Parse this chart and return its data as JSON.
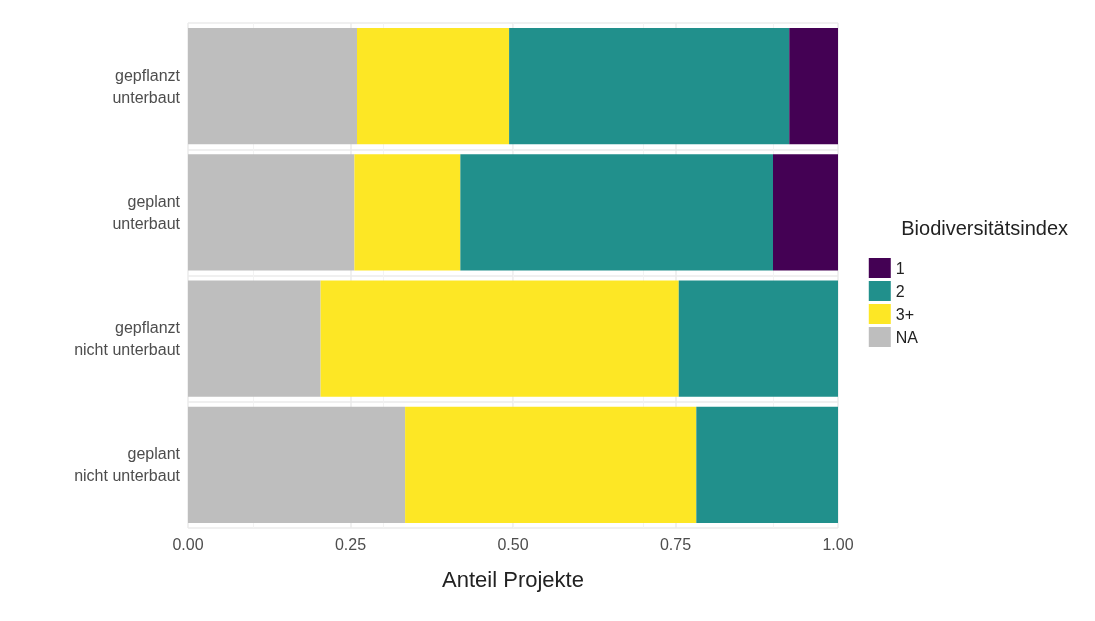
{
  "chart_data": {
    "type": "bar",
    "orientation": "horizontal",
    "stacked": true,
    "xlabel": "Anteil Projekte",
    "legend_title": "Biodiversitätsindex",
    "legend": "right",
    "grid": true,
    "categories": [
      "gepflanzt\nunterbaut",
      "geplant\nunterbaut",
      "gepflanzt\nnicht unterbaut",
      "geplant\nnicht unterbaut"
    ],
    "xlim": [
      0,
      1
    ],
    "xticks": [
      {
        "value": 0,
        "label": "0.00"
      },
      {
        "value": 0.25,
        "label": "0.25"
      },
      {
        "value": 0.5,
        "label": "0.50"
      },
      {
        "value": 0.75,
        "label": "0.75"
      },
      {
        "value": 1,
        "label": "1.00"
      }
    ],
    "series": [
      {
        "name": "NA",
        "color": "#bebebe",
        "values": [
          0.26,
          0.256,
          0.204,
          0.334
        ]
      },
      {
        "name": "3+",
        "color": "#fde725",
        "values": [
          0.234,
          0.163,
          0.551,
          0.448
        ]
      },
      {
        "name": "2",
        "color": "#21908c",
        "values": [
          0.431,
          0.481,
          0.245,
          0.218
        ]
      },
      {
        "name": "1",
        "color": "#440154",
        "values": [
          0.075,
          0.1,
          0,
          0
        ]
      }
    ]
  }
}
